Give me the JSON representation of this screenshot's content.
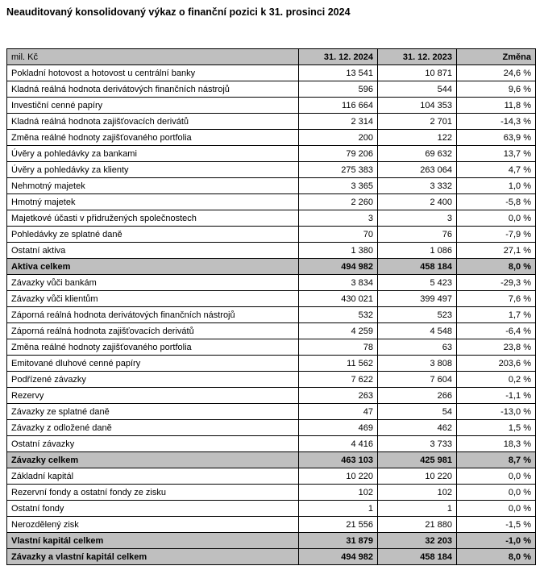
{
  "title": "Neauditovaný konsolidovaný výkaz o finanční pozici k 31. prosinci 2024",
  "table": {
    "columns": [
      "mil. Kč",
      "31. 12. 2024",
      "31. 12. 2023",
      "Změna"
    ],
    "rows": [
      {
        "label": "Pokladní hotovost a hotovost u centrální banky",
        "v2024": "13 541",
        "v2023": "10 871",
        "change": "24,6 %",
        "total": false
      },
      {
        "label": "Kladná reálná hodnota derivátových finančních nástrojů",
        "v2024": "596",
        "v2023": "544",
        "change": "9,6 %",
        "total": false
      },
      {
        "label": "Investiční cenné papíry",
        "v2024": "116 664",
        "v2023": "104 353",
        "change": "11,8 %",
        "total": false
      },
      {
        "label": "Kladná reálná hodnota zajišťovacích derivátů",
        "v2024": "2 314",
        "v2023": "2 701",
        "change": "-14,3 %",
        "total": false
      },
      {
        "label": "Změna reálné hodnoty zajišťovaného portfolia",
        "v2024": "200",
        "v2023": "122",
        "change": "63,9 %",
        "total": false
      },
      {
        "label": "Úvěry a pohledávky za bankami",
        "v2024": "79 206",
        "v2023": "69 632",
        "change": "13,7 %",
        "total": false
      },
      {
        "label": "Úvěry a pohledávky za klienty",
        "v2024": "275 383",
        "v2023": "263 064",
        "change": "4,7 %",
        "total": false
      },
      {
        "label": "Nehmotný majetek",
        "v2024": "3 365",
        "v2023": "3 332",
        "change": "1,0 %",
        "total": false
      },
      {
        "label": "Hmotný majetek",
        "v2024": "2 260",
        "v2023": "2 400",
        "change": "-5,8 %",
        "total": false
      },
      {
        "label": "Majetkové účasti v přidružených společnostech",
        "v2024": "3",
        "v2023": "3",
        "change": "0,0 %",
        "total": false
      },
      {
        "label": "Pohledávky ze splatné daně",
        "v2024": "70",
        "v2023": "76",
        "change": "-7,9 %",
        "total": false
      },
      {
        "label": "Ostatní aktiva",
        "v2024": "1 380",
        "v2023": "1 086",
        "change": "27,1 %",
        "total": false
      },
      {
        "label": "Aktiva celkem",
        "v2024": "494 982",
        "v2023": "458 184",
        "change": "8,0 %",
        "total": true
      },
      {
        "label": "Závazky vůči bankám",
        "v2024": "3 834",
        "v2023": "5 423",
        "change": "-29,3 %",
        "total": false
      },
      {
        "label": "Závazky vůči klientům",
        "v2024": "430 021",
        "v2023": "399 497",
        "change": "7,6 %",
        "total": false
      },
      {
        "label": "Záporná reálná hodnota derivátových finančních nástrojů",
        "v2024": "532",
        "v2023": "523",
        "change": "1,7 %",
        "total": false
      },
      {
        "label": "Záporná reálná hodnota zajišťovacích derivátů",
        "v2024": "4 259",
        "v2023": "4 548",
        "change": "-6,4 %",
        "total": false
      },
      {
        "label": "Změna reálné hodnoty zajišťovaného portfolia",
        "v2024": "78",
        "v2023": "63",
        "change": "23,8 %",
        "total": false
      },
      {
        "label": "Emitované dluhové cenné papíry",
        "v2024": "11 562",
        "v2023": "3 808",
        "change": "203,6 %",
        "total": false
      },
      {
        "label": "Podřízené závazky",
        "v2024": "7 622",
        "v2023": "7 604",
        "change": "0,2 %",
        "total": false
      },
      {
        "label": "Rezervy",
        "v2024": "263",
        "v2023": "266",
        "change": "-1,1 %",
        "total": false
      },
      {
        "label": "Závazky ze splatné daně",
        "v2024": "47",
        "v2023": "54",
        "change": "-13,0 %",
        "total": false
      },
      {
        "label": "Závazky z odložené daně",
        "v2024": "469",
        "v2023": "462",
        "change": "1,5 %",
        "total": false
      },
      {
        "label": "Ostatní závazky",
        "v2024": "4 416",
        "v2023": "3 733",
        "change": "18,3 %",
        "total": false
      },
      {
        "label": "Závazky celkem",
        "v2024": "463 103",
        "v2023": "425 981",
        "change": "8,7 %",
        "total": true
      },
      {
        "label": "Základní kapitál",
        "v2024": "10 220",
        "v2023": "10 220",
        "change": "0,0 %",
        "total": false
      },
      {
        "label": "Rezervní fondy a ostatní fondy ze zisku",
        "v2024": "102",
        "v2023": "102",
        "change": "0,0 %",
        "total": false
      },
      {
        "label": "Ostatní fondy",
        "v2024": "1",
        "v2023": "1",
        "change": "0,0 %",
        "total": false
      },
      {
        "label": "Nerozdělený zisk",
        "v2024": "21 556",
        "v2023": "21 880",
        "change": "-1,5 %",
        "total": false
      },
      {
        "label": "Vlastní kapitál celkem",
        "v2024": "31 879",
        "v2023": "32 203",
        "change": "-1,0 %",
        "total": true
      },
      {
        "label": "Závazky a vlastní kapitál celkem",
        "v2024": "494 982",
        "v2023": "458 184",
        "change": "8,0 %",
        "total": true
      }
    ]
  },
  "colors": {
    "header_bg": "#bfbfbf",
    "total_row_bg": "#bfbfbf",
    "border": "#000000",
    "text": "#000000",
    "page_bg": "#ffffff"
  }
}
